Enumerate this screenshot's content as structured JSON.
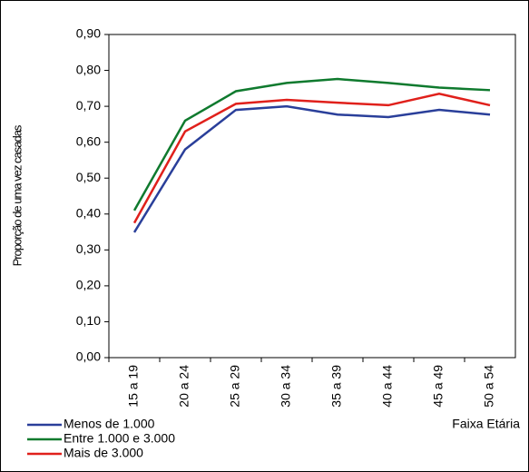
{
  "chart_data": {
    "type": "line",
    "y_label": "Proporção de uma vez casadas",
    "x_label": "Faixa Etária",
    "categories": [
      "15 a 19",
      "20 a 24",
      "25 a 29",
      "30 a 34",
      "35 a 39",
      "40 a 44",
      "45 a 49",
      "50 a 54"
    ],
    "series": [
      {
        "name": "Menos de 1.000",
        "color": "#2a3f9a",
        "values": [
          0.349,
          0.58,
          0.69,
          0.7,
          0.677,
          0.67,
          0.69,
          0.677
        ]
      },
      {
        "name": "Entre 1.000 e 3.000",
        "color": "#0f7a2e",
        "values": [
          0.41,
          0.66,
          0.742,
          0.765,
          0.776,
          0.765,
          0.752,
          0.745
        ]
      },
      {
        "name": "Mais de 3.000",
        "color": "#e0201b",
        "values": [
          0.375,
          0.63,
          0.707,
          0.718,
          0.71,
          0.703,
          0.735,
          0.703
        ]
      }
    ],
    "ylim": [
      0,
      0.9
    ],
    "yticks": [
      {
        "value": 0,
        "label": "0,00"
      },
      {
        "value": 0.1,
        "label": "0,10"
      },
      {
        "value": 0.2,
        "label": "0,20"
      },
      {
        "value": 0.3,
        "label": "0,30"
      },
      {
        "value": 0.4,
        "label": "0,40"
      },
      {
        "value": 0.5,
        "label": "0,50"
      },
      {
        "value": 0.6,
        "label": "0,60"
      },
      {
        "value": 0.7,
        "label": "0,70"
      },
      {
        "value": 0.8,
        "label": "0,80"
      },
      {
        "value": 0.9,
        "label": "0,90"
      }
    ],
    "legend": "bottom-left"
  }
}
